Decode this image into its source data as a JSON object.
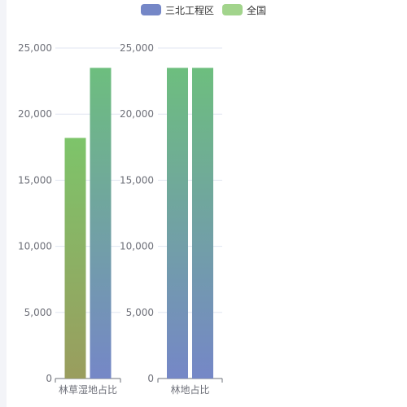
{
  "legend": {
    "items": [
      {
        "label": "三北工程区",
        "color": "#7587c7"
      },
      {
        "label": "全国",
        "color": "#a2d48c"
      }
    ]
  },
  "chart_data": [
    {
      "type": "bar",
      "categories": [
        "林草湿地占比"
      ],
      "series": [
        {
          "name": "三北工程区",
          "values": [
            18200
          ],
          "gradient": [
            "#7dc46a",
            "#9a9d5e"
          ]
        },
        {
          "name": "全国",
          "values": [
            23500
          ],
          "gradient": [
            "#6dbe7e",
            "#7587c7"
          ]
        }
      ],
      "ylim": [
        0,
        25000
      ],
      "yticks": [
        "0",
        "5,000",
        "10,000",
        "15,000",
        "20,000",
        "25,000"
      ],
      "grid": true
    },
    {
      "type": "bar",
      "categories": [
        "林地占比"
      ],
      "series": [
        {
          "name": "三北工程区",
          "values": [
            23500
          ],
          "gradient": [
            "#6dbe7e",
            "#7587c7"
          ]
        },
        {
          "name": "全国",
          "values": [
            23500
          ],
          "gradient": [
            "#6dbe7e",
            "#7587c7"
          ]
        }
      ],
      "ylim": [
        0,
        25000
      ],
      "yticks": [
        "0",
        "5,000",
        "10,000",
        "15,000",
        "20,000",
        "25,000"
      ],
      "grid": true
    }
  ]
}
